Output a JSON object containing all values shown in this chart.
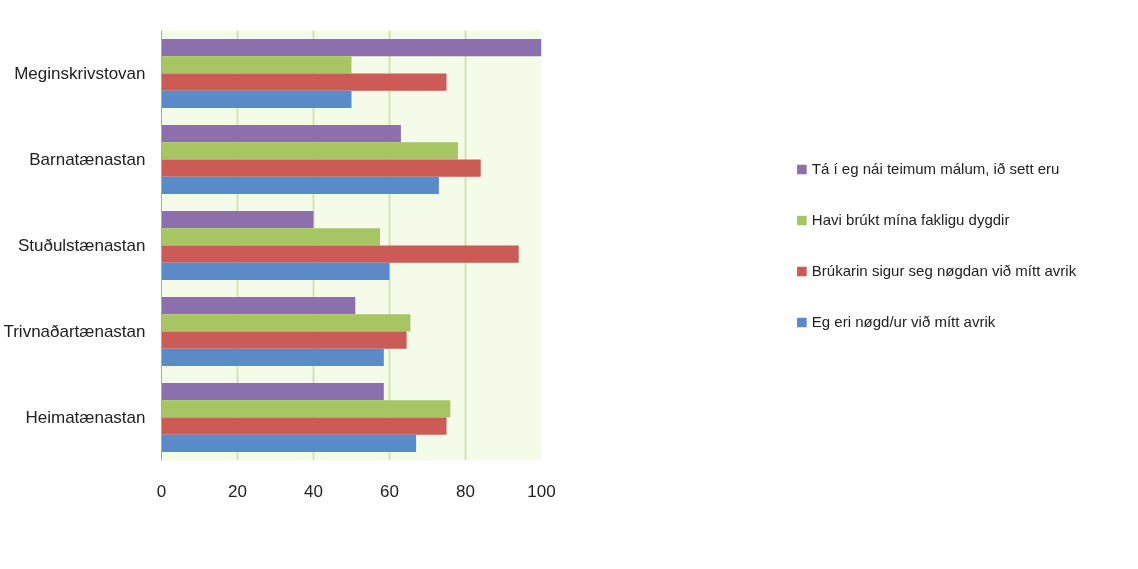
{
  "chart_data": {
    "type": "bar",
    "orientation": "horizontal",
    "categories": [
      "Meginskrivstovan",
      "Barnatænastan",
      "Stuðulstænastan",
      "Trivnaðartænastan",
      "Heimatænastan"
    ],
    "series": [
      {
        "name": "Tá í eg nái teimum málum, ið sett eru",
        "color": "#8c6fad",
        "values": [
          100,
          63,
          40,
          51,
          58.5
        ]
      },
      {
        "name": "Havi brúkt mína fakligu dygdir",
        "color": "#a7c563",
        "values": [
          50,
          78,
          57.5,
          65.5,
          76
        ]
      },
      {
        "name": "Brúkarin sigur seg nøgdan við mítt avrik",
        "color": "#cc5a55",
        "values": [
          75,
          84,
          94,
          64.5,
          75
        ]
      },
      {
        "name": "Eg eri nøgd/ur við mítt avrik",
        "color": "#5a8bc8",
        "values": [
          50,
          73,
          60,
          58.5,
          67
        ]
      }
    ],
    "xlim": [
      0,
      100
    ],
    "xticks": [
      0,
      20,
      40,
      60,
      80,
      100
    ],
    "grid": "x",
    "legend": "right"
  }
}
